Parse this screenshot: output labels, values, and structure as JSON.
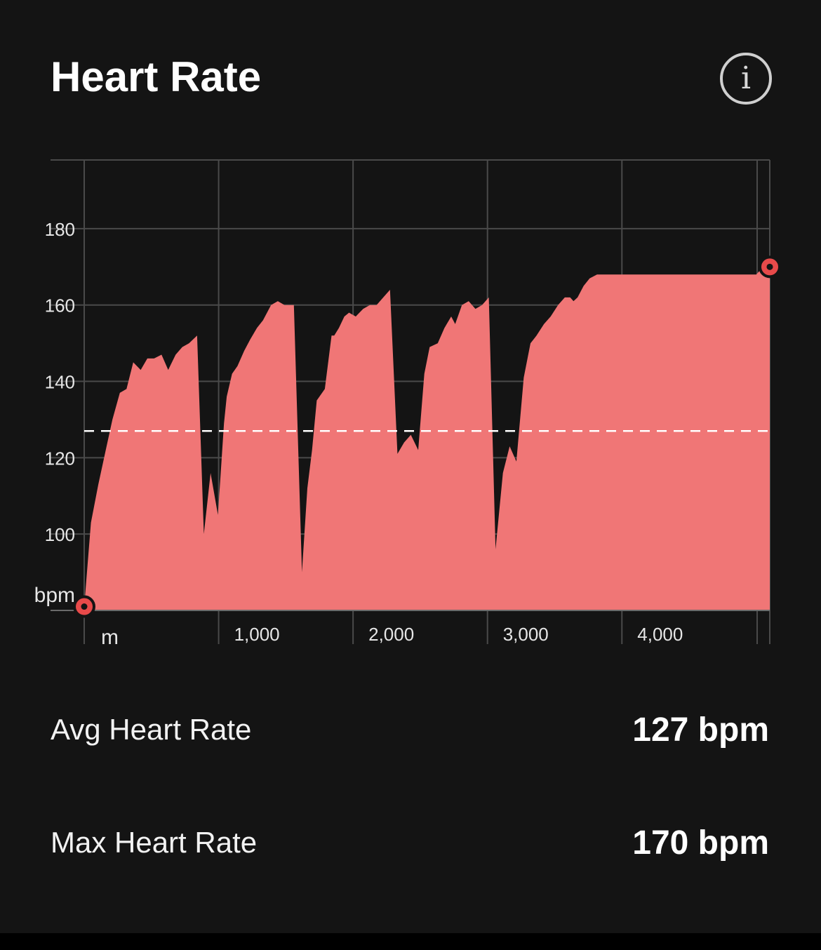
{
  "header": {
    "title": "Heart Rate",
    "info_icon": "info-icon"
  },
  "colors": {
    "background": "#141414",
    "area_fill": "#f07676",
    "marker": "#e84a4a",
    "grid": "#4a4a4a",
    "avg_line": "#ffffff"
  },
  "chart_data": {
    "type": "area",
    "ylabel": "bpm",
    "xlabel": "m",
    "ylim": [
      80,
      198
    ],
    "xlim": [
      0,
      5100
    ],
    "y_ticks": [
      100,
      120,
      140,
      160,
      180
    ],
    "y_tick_labels": [
      "100",
      "120",
      "140",
      "160",
      "180"
    ],
    "x_ticks": [
      1000,
      2000,
      3000,
      4000
    ],
    "x_tick_labels": [
      "1,000",
      "2,000",
      "3,000",
      "4,000"
    ],
    "grid": true,
    "avg_line": 127,
    "markers": [
      {
        "x": 0,
        "y": 81
      },
      {
        "x": 5100,
        "y": 170
      }
    ],
    "series": [
      {
        "x": [
          0,
          50,
          105,
          160,
          210,
          265,
          315,
          365,
          420,
          470,
          520,
          575,
          625,
          680,
          730,
          780,
          840,
          890,
          940,
          995,
          1040,
          1060,
          1100,
          1140,
          1190,
          1235,
          1285,
          1330,
          1390,
          1440,
          1490,
          1560,
          1620,
          1660,
          1695,
          1730,
          1790,
          1840,
          1860,
          1895,
          1935,
          1970,
          2020,
          2075,
          2125,
          2175,
          2225,
          2275,
          2330,
          2380,
          2430,
          2485,
          2530,
          2570,
          2630,
          2680,
          2730,
          2760,
          2810,
          2860,
          2910,
          2960,
          3010,
          3060,
          3115,
          3165,
          3215,
          3270,
          3320,
          3365,
          3420,
          3470,
          3525,
          3575,
          3615,
          3640,
          3670,
          3715,
          3760,
          3815,
          3875,
          3925,
          3970,
          4020,
          4080,
          4135,
          4180,
          4235,
          4285,
          4340,
          4400,
          4460,
          4520,
          4580,
          4630,
          4690,
          4740,
          4790,
          4845,
          4900,
          4950,
          5000,
          5050,
          5100
        ],
        "y": [
          81,
          103,
          113,
          122,
          130,
          137,
          138,
          145,
          143,
          146,
          146,
          147,
          143,
          147,
          149,
          150,
          152,
          100,
          116,
          105,
          129,
          136,
          142,
          144,
          148,
          151,
          154,
          156,
          160,
          161,
          160,
          160,
          90,
          112,
          122,
          135,
          138,
          152,
          152,
          154,
          157,
          158,
          157,
          159,
          160,
          160,
          162,
          164,
          121,
          124,
          126,
          122,
          142,
          149,
          150,
          154,
          157,
          155,
          160,
          161,
          159,
          160,
          162,
          96,
          116,
          123,
          119,
          141,
          150,
          152,
          155,
          157,
          160,
          162,
          162,
          161,
          162,
          165,
          167,
          168,
          168,
          168,
          168,
          168,
          168,
          168,
          168,
          168,
          168,
          168,
          168,
          168,
          168,
          168,
          168,
          168,
          168,
          168,
          168,
          168,
          168,
          168,
          170,
          170
        ]
      }
    ]
  },
  "stats": [
    {
      "label": "Avg Heart Rate",
      "value": "127 bpm"
    },
    {
      "label": "Max Heart Rate",
      "value": "170 bpm"
    }
  ]
}
